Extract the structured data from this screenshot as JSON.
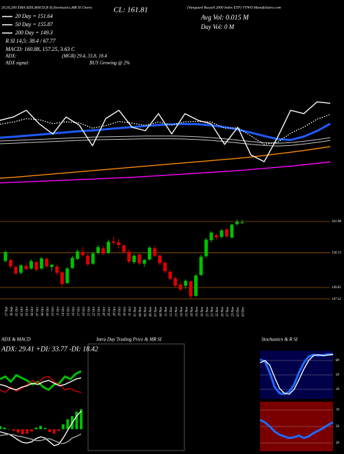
{
  "chart_data": [
    {
      "type": "line",
      "annotations": [
        "20,50,200 EMA ADX,MACD,B SI,Stochastics,MR SI Charts",
        "CL: 161.81",
        "(Vanguard Russell 2000 Index ETF) VTWO MunafaSutra.com",
        "Avg Vol: 0.015 M",
        "Day Vol: 0 M",
        "20 Day = 151.64",
        "50 Day = 155.87",
        "200 Day = 149.3",
        "R SI 14,5: 38.4 / 67.77",
        "MACD: 160.88, 157.25, 3.63 C",
        "ADX:",
        "(MGR) 29.4, 33.8, 18.4",
        "ADX  signal:",
        "BUY Growing @ 2%"
      ],
      "ylim": [
        136,
        168
      ],
      "series": [
        {
          "color": "#c8c8c8",
          "style": "double",
          "values": [
            152.0,
            152.2,
            152.4,
            152.6,
            152.8,
            153.0,
            153.2,
            153.4,
            153.5,
            153.6,
            153.7,
            153.8,
            153.8,
            153.8,
            153.7,
            153.5,
            153.2,
            152.8,
            152.3,
            151.8,
            151.4,
            151.2,
            151.4,
            151.9,
            152.5,
            153.2
          ]
        },
        {
          "color": "#ff8c00",
          "style": "solid",
          "values": [
            138.7,
            139.0,
            139.4,
            139.8,
            140.2,
            140.6,
            141.0,
            141.4,
            141.8,
            142.2,
            142.6,
            143.0,
            143.4,
            143.8,
            144.2,
            144.6,
            145.0,
            145.4,
            145.8,
            146.3,
            146.8,
            147.4,
            148.0,
            148.6,
            149.3,
            150.0
          ]
        },
        {
          "color": "#ff00ff",
          "style": "solid",
          "values": [
            137.0,
            137.2,
            137.4,
            137.6,
            137.8,
            138.0,
            138.2,
            138.4,
            138.6,
            138.8,
            139.0,
            139.3,
            139.6,
            139.9,
            140.2,
            140.5,
            140.8,
            141.1,
            141.4,
            141.8,
            142.2,
            142.6,
            143.0,
            143.5,
            144.0,
            144.5
          ]
        },
        {
          "color": "#1e5cff",
          "style": "thick",
          "values": [
            153.2,
            153.5,
            153.9,
            154.3,
            154.7,
            155.1,
            155.5,
            155.8,
            156.2,
            156.6,
            157.0,
            157.4,
            157.7,
            158.0,
            158.1,
            158.0,
            157.6,
            157.0,
            156.1,
            155.0,
            153.8,
            152.7,
            152.4,
            153.6,
            155.6,
            158.2
          ]
        },
        {
          "color": "#ffffff",
          "style": "dotted",
          "values": [
            158.0,
            158.8,
            160.0,
            159.6,
            158.2,
            158.9,
            158.5,
            156.6,
            157.5,
            159.0,
            158.4,
            157.6,
            158.8,
            157.7,
            158.9,
            159.0,
            158.8,
            156.6,
            156.7,
            153.8,
            150.8,
            151.5,
            154.8,
            157.0,
            159.8,
            161.5
          ]
        },
        {
          "color": "#ffffff",
          "style": "solid",
          "values": [
            159.4,
            160.6,
            163.0,
            158.0,
            154.5,
            160.6,
            157.7,
            150.3,
            160.0,
            163.0,
            156.9,
            155.7,
            161.8,
            154.5,
            161.8,
            159.4,
            158.1,
            150.8,
            156.9,
            147.0,
            144.6,
            153.2,
            163.0,
            161.8,
            166.0,
            165.5
          ]
        }
      ]
    },
    {
      "type": "candlestick",
      "x": [
        "27 Sep",
        "30 Sep",
        "01 Oct",
        "02 Oct",
        "03 Oct",
        "04 Oct",
        "07 Oct",
        "08 Oct",
        "09 Oct",
        "10 Oct",
        "11 Oct",
        "14 Oct",
        "15 Oct",
        "16 Oct",
        "17 Oct",
        "18 Oct",
        "21 Oct",
        "22 Oct",
        "23 Oct",
        "24 Oct",
        "25 Oct",
        "28 Oct",
        "29 Oct",
        "30 Oct",
        "31 Oct",
        "01 Nov",
        "04 Nov",
        "05 Nov",
        "06 Nov",
        "07 Nov",
        "08 Nov",
        "11 Nov",
        "12 Nov",
        "13 Nov",
        "14 Nov",
        "15 Nov",
        "18 Nov",
        "19 Nov",
        "20 Nov",
        "21 Nov",
        "22 Nov",
        "25 Nov",
        "26 Nov",
        "27 Nov",
        "29 Nov",
        "02 Dec",
        "03 Dec"
      ],
      "open": [
        154.6,
        154.8,
        153.5,
        152.4,
        153.7,
        153.2,
        154.4,
        153.2,
        155.0,
        153.5,
        153.6,
        152.5,
        150.5,
        153.3,
        155.0,
        156.3,
        155.6,
        154.1,
        156.2,
        157.0,
        156.1,
        158.3,
        158.1,
        157.5,
        156.3,
        154.4,
        155.8,
        154.1,
        154.9,
        157.0,
        155.6,
        154.3,
        152.6,
        151.4,
        150.2,
        150.0,
        150.8,
        148.1,
        152.0,
        155.5,
        158.5,
        159.4,
        159.1,
        160.5,
        159.0,
        161.5,
        161.8
      ],
      "high": [
        156.5,
        155.0,
        153.8,
        154.0,
        154.2,
        154.9,
        154.6,
        155.4,
        155.3,
        154.1,
        153.9,
        152.7,
        153.5,
        155.6,
        156.8,
        157.2,
        155.9,
        156.3,
        157.6,
        157.4,
        158.6,
        159.2,
        158.7,
        157.8,
        156.8,
        155.9,
        156.0,
        155.0,
        157.4,
        157.5,
        155.9,
        154.5,
        152.9,
        151.7,
        150.8,
        151.2,
        151.0,
        152.2,
        155.8,
        158.9,
        160.2,
        159.7,
        160.6,
        160.8,
        161.6,
        162.4,
        162.3
      ],
      "low": [
        154.3,
        153.2,
        152.0,
        152.1,
        152.8,
        153.0,
        152.6,
        153.0,
        153.3,
        152.7,
        152.0,
        149.8,
        150.3,
        153.1,
        154.8,
        155.4,
        153.6,
        153.9,
        155.8,
        155.7,
        155.9,
        157.6,
        157.0,
        155.9,
        154.1,
        154.0,
        153.9,
        153.5,
        154.7,
        155.3,
        153.8,
        152.3,
        151.0,
        149.6,
        148.9,
        149.4,
        147.6,
        147.9,
        151.8,
        155.2,
        158.1,
        158.6,
        158.8,
        158.9,
        158.8,
        161.2,
        161.5
      ],
      "close": [
        156.3,
        153.6,
        152.3,
        153.8,
        153.1,
        154.6,
        153.0,
        155.1,
        153.6,
        153.9,
        152.4,
        150.3,
        153.2,
        155.2,
        156.4,
        155.7,
        154.0,
        156.0,
        157.2,
        156.0,
        158.2,
        158.0,
        157.6,
        156.3,
        154.5,
        155.6,
        154.2,
        154.8,
        157.1,
        155.6,
        154.2,
        152.7,
        151.3,
        150.0,
        149.3,
        150.9,
        148.0,
        151.9,
        155.4,
        158.6,
        159.9,
        159.0,
        160.3,
        159.2,
        161.4,
        161.9,
        161.8
      ],
      "up_color": "#00c000",
      "down_color": "#e00000",
      "grid": true,
      "grid_color": "#9a5a00",
      "ylim": [
        146.83,
        162.88
      ],
      "yticks": [
        161.98,
        156.13,
        149.65,
        147.52
      ]
    },
    {
      "type": "line",
      "title": "ADX & MACD",
      "subtitle": "ADX: 29.41 +DI: 33.77 -DI: 18.42",
      "ylim": [
        10,
        40
      ],
      "series": [
        {
          "color": "#00c000",
          "style": "thick",
          "values": [
            28,
            30,
            26,
            31,
            29,
            27,
            24,
            26,
            22,
            20,
            24,
            25,
            30,
            28,
            32,
            34
          ]
        },
        {
          "color": "#e00000",
          "style": "solid",
          "values": [
            20,
            18,
            22,
            19,
            21,
            24,
            27,
            25,
            29,
            30,
            26,
            24,
            20,
            21,
            19,
            18
          ]
        },
        {
          "color": "#ffffff",
          "style": "solid",
          "values": [
            24,
            23,
            21,
            20,
            22,
            23,
            25,
            24,
            26,
            27,
            25,
            23,
            24,
            26,
            28,
            29
          ]
        }
      ]
    },
    {
      "type": "line",
      "ylim": [
        154.5,
        161.5
      ],
      "y2lim": [
        -4,
        4
      ],
      "series": [
        {
          "color": "#00c000",
          "negative_color": "#e00000",
          "style": "bars",
          "axis": "y2",
          "values": [
            0.6,
            0.3,
            0,
            -0.3,
            -0.6,
            -0.9,
            -0.8,
            -0.4,
            0.3,
            0.6,
            0.2,
            -0.5,
            -0.8,
            -0.3,
            0.9,
            1.8,
            2.4,
            3.2,
            3.63
          ]
        },
        {
          "color": "#ffffff",
          "style": "solid",
          "values": [
            157.6,
            157.4,
            157.2,
            156.8,
            156.3,
            155.9,
            155.8,
            156.0,
            156.5,
            156.8,
            156.6,
            156.0,
            155.4,
            155.6,
            156.6,
            157.8,
            159.0,
            160.1,
            160.88
          ]
        },
        {
          "color": "#aaaaaa",
          "style": "solid",
          "values": [
            157.0,
            157.1,
            157.2,
            157.1,
            156.9,
            156.8,
            156.6,
            156.4,
            156.2,
            156.2,
            156.4,
            156.5,
            156.2,
            155.9,
            155.7,
            156.0,
            156.6,
            156.9,
            157.25
          ]
        }
      ]
    },
    {
      "type": "intraday",
      "title": "Intra Day Trading Price & MR SI"
    },
    {
      "type": "line",
      "title": "Stochastics & R SI",
      "background": "#00004a",
      "ylim": [
        0,
        100
      ],
      "yticks": [
        80,
        50,
        20
      ],
      "grid": true,
      "series": [
        {
          "color": "#1e6cff",
          "style": "thick",
          "values": [
            82,
            78,
            55,
            25,
            12,
            10,
            15,
            30,
            55,
            75,
            88,
            92,
            90,
            91,
            93,
            92
          ]
        },
        {
          "color": "#ffffff",
          "style": "solid",
          "values": [
            75,
            80,
            70,
            45,
            22,
            12,
            10,
            20,
            40,
            62,
            80,
            90,
            92,
            90,
            91,
            93
          ]
        }
      ]
    },
    {
      "type": "line",
      "background": "#7a0000",
      "ylim": [
        20,
        80
      ],
      "yticks": [
        70,
        50,
        30
      ],
      "grid": true,
      "series": [
        {
          "color": "#1e6cff",
          "style": "thick",
          "values": [
            58,
            55,
            50,
            44,
            40,
            38,
            36,
            37,
            39,
            36,
            38,
            42,
            45,
            48,
            52,
            55
          ]
        }
      ]
    }
  ]
}
